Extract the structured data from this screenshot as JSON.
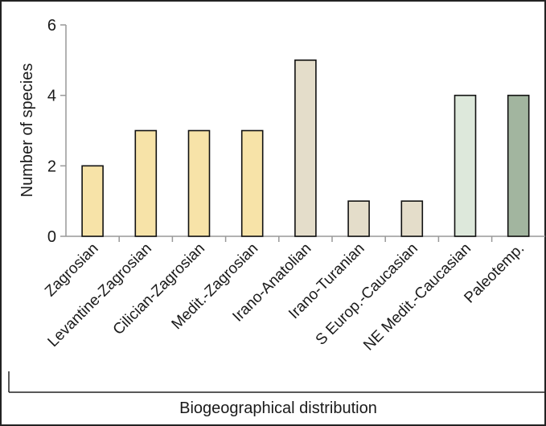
{
  "chart_data": {
    "type": "bar",
    "title": "",
    "xlabel": "Biogeographical distribution",
    "ylabel": "Number of species",
    "ylim": [
      0,
      6
    ],
    "yticks": [
      0,
      2,
      4,
      6
    ],
    "grid": false,
    "categories": [
      "Zagrosian",
      "Levantine-Zagrosian",
      "Cilician-Zagrosian",
      "Medit.-Zagrosian",
      "Irano-Anatolian",
      "Irano-Turanian",
      "S Europ.-Caucasian",
      "NE Medit.-Caucasian",
      "Paleotemp."
    ],
    "values": [
      2,
      3,
      3,
      3,
      5,
      1,
      1,
      4,
      4
    ],
    "colors": [
      "#f7e3a8",
      "#f7e3a8",
      "#f7e3a8",
      "#f7e3a8",
      "#e4ddca",
      "#e4ddca",
      "#e4ddca",
      "#dde8db",
      "#a2b59f"
    ]
  }
}
